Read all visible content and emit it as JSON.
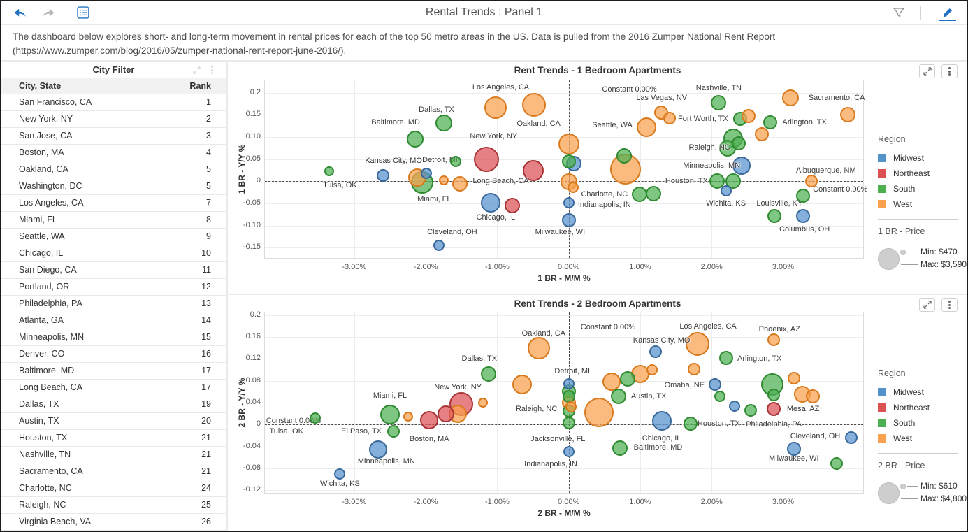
{
  "toolbar": {
    "title": "Rental Trends : Panel 1"
  },
  "description": "The dashboard below explores short- and long-term movement in rental prices for each of the top 50 metro areas in the US. Data is pulled from the 2016 Zumper National Rent Report (https://www.zumper.com/blog/2016/05/zumper-national-rent-report-june-2016/).",
  "city_filter": {
    "title": "City Filter",
    "columns": [
      "City, State",
      "Rank"
    ],
    "rows": [
      [
        "San Francisco, CA",
        "1"
      ],
      [
        "New York, NY",
        "2"
      ],
      [
        "San Jose, CA",
        "3"
      ],
      [
        "Boston, MA",
        "4"
      ],
      [
        "Oakland, CA",
        "5"
      ],
      [
        "Washington, DC",
        "5"
      ],
      [
        "Los Angeles, CA",
        "7"
      ],
      [
        "Miami, FL",
        "8"
      ],
      [
        "Seattle, WA",
        "9"
      ],
      [
        "Chicago, IL",
        "10"
      ],
      [
        "San Diego, CA",
        "11"
      ],
      [
        "Portland, OR",
        "12"
      ],
      [
        "Philadelphia, PA",
        "13"
      ],
      [
        "Atlanta, GA",
        "14"
      ],
      [
        "Minneapolis, MN",
        "15"
      ],
      [
        "Denver, CO",
        "16"
      ],
      [
        "Baltimore, MD",
        "17"
      ],
      [
        "Long Beach, CA",
        "17"
      ],
      [
        "Dallas, TX",
        "19"
      ],
      [
        "Austin, TX",
        "20"
      ],
      [
        "Houston, TX",
        "21"
      ],
      [
        "Nashville, TN",
        "21"
      ],
      [
        "Sacramento, CA",
        "21"
      ],
      [
        "Charlotte, NC",
        "24"
      ],
      [
        "Raleigh, NC",
        "25"
      ],
      [
        "Virginia Beach, VA",
        "26"
      ]
    ]
  },
  "regions": {
    "Midwest": {
      "fill": "rgba(84,146,205,0.72)",
      "stroke": "#39699B",
      "swatch": "#5492CD"
    },
    "Northeast": {
      "fill": "rgba(219,81,84,0.72)",
      "stroke": "#A93336",
      "swatch": "#DB5154"
    },
    "South": {
      "fill": "rgba(76,176,80,0.72)",
      "stroke": "#2F8A32",
      "swatch": "#4CB050"
    },
    "West": {
      "fill": "rgba(249,161,78,0.72)",
      "stroke": "#D97A1E",
      "swatch": "#F9A14E"
    }
  },
  "chart_data": [
    {
      "type": "scatter",
      "title": "Rent Trends - 1 Bedroom Apartments",
      "xlabel": "1 BR - M/M %",
      "ylabel": "1 BR - Y/Y %",
      "xlim": [
        -4.25,
        4.12
      ],
      "ylim": [
        -0.173,
        0.228
      ],
      "grid": true,
      "constant_x": 0,
      "constant_y": 0,
      "xticks": [
        {
          "v": -3,
          "label": "-3.00%"
        },
        {
          "v": -2,
          "label": "-2.00%"
        },
        {
          "v": -1,
          "label": "-1.00%"
        },
        {
          "v": 0,
          "label": "0.00%"
        },
        {
          "v": 1,
          "label": "1.00%"
        },
        {
          "v": 2,
          "label": "2.00%"
        },
        {
          "v": 3,
          "label": "3.00%"
        }
      ],
      "yticks": [
        {
          "v": 0.2,
          "label": "0.2"
        },
        {
          "v": 0.15,
          "label": "0.15"
        },
        {
          "v": 0.1,
          "label": "0.10"
        },
        {
          "v": 0.05,
          "label": "0.05"
        },
        {
          "v": 0,
          "label": "0"
        },
        {
          "v": -0.05,
          "label": "-0.05"
        },
        {
          "v": -0.1,
          "label": "-0.10"
        },
        {
          "v": -0.15,
          "label": "-0.15"
        }
      ],
      "legend": {
        "region_title": "Region",
        "entries": [
          "Midwest",
          "Northeast",
          "South",
          "West"
        ],
        "size_title": "1 BR - Price",
        "min_label": "Min: $470",
        "max_label": "Max: $3,590"
      },
      "points": [
        [
          -3.35,
          0.023,
          7,
          "South"
        ],
        [
          -2.6,
          0.013,
          9,
          "Midwest"
        ],
        [
          -2.15,
          0.095,
          12,
          "South"
        ],
        [
          -2.12,
          0.009,
          13,
          "West"
        ],
        [
          -2.05,
          -0.003,
          16,
          "South"
        ],
        [
          -1.99,
          0.018,
          8,
          "Midwest"
        ],
        [
          -1.75,
          0.002,
          7,
          "West"
        ],
        [
          -1.52,
          -0.005,
          11,
          "West"
        ],
        [
          -1.58,
          0.045,
          8,
          "South"
        ],
        [
          -1.75,
          0.131,
          12,
          "South"
        ],
        [
          -1.02,
          0.166,
          16,
          "West"
        ],
        [
          -0.49,
          0.173,
          17,
          "West"
        ],
        [
          -1.15,
          0.05,
          18,
          "Northeast"
        ],
        [
          -0.5,
          0.025,
          15,
          "Northeast"
        ],
        [
          -1.09,
          -0.048,
          14,
          "Midwest"
        ],
        [
          -0.79,
          -0.055,
          11,
          "Northeast"
        ],
        [
          -1.82,
          -0.145,
          8,
          "Midwest"
        ],
        [
          0,
          0.084,
          15,
          "West"
        ],
        [
          0,
          0.045,
          10,
          "South"
        ],
        [
          0.07,
          0.04,
          11,
          "Midwest"
        ],
        [
          0,
          -0.001,
          12,
          "West"
        ],
        [
          0.06,
          -0.013,
          8,
          "West"
        ],
        [
          0,
          -0.049,
          8,
          "Midwest"
        ],
        [
          0,
          -0.088,
          10,
          "Midwest"
        ],
        [
          0.8,
          0.028,
          22,
          "West"
        ],
        [
          0.78,
          0.057,
          11,
          "South"
        ],
        [
          1.09,
          0.122,
          14,
          "West"
        ],
        [
          1.29,
          0.156,
          10,
          "West"
        ],
        [
          1.41,
          0.143,
          9,
          "West"
        ],
        [
          2.1,
          0.177,
          11,
          "South"
        ],
        [
          2.4,
          0.141,
          10,
          "South"
        ],
        [
          2.52,
          0.147,
          10,
          "West"
        ],
        [
          2.3,
          0.097,
          14,
          "South"
        ],
        [
          2.22,
          0.075,
          12,
          "South"
        ],
        [
          2.38,
          0.086,
          10,
          "South"
        ],
        [
          2.42,
          0.036,
          13,
          "Midwest"
        ],
        [
          2.08,
          0.0,
          11,
          "South"
        ],
        [
          2.3,
          0.001,
          11,
          "South"
        ],
        [
          2.2,
          -0.022,
          8,
          "Midwest"
        ],
        [
          0.99,
          -0.029,
          11,
          "South"
        ],
        [
          1.19,
          -0.027,
          11,
          "South"
        ],
        [
          3.1,
          0.188,
          12,
          "West"
        ],
        [
          3.9,
          0.151,
          11,
          "West"
        ],
        [
          2.82,
          0.133,
          10,
          "South"
        ],
        [
          2.7,
          0.106,
          10,
          "West"
        ],
        [
          3.4,
          0.0,
          9,
          "West"
        ],
        [
          3.28,
          -0.033,
          10,
          "South"
        ],
        [
          3.28,
          -0.078,
          10,
          "Midwest"
        ],
        [
          2.88,
          -0.079,
          10,
          "South"
        ]
      ],
      "labels": [
        [
          "Los Angeles, CA",
          -0.95,
          0.212
        ],
        [
          "Constant 0.00%",
          0.85,
          0.208
        ],
        [
          "Las Vegas, NV",
          1.3,
          0.189
        ],
        [
          "Nashville, TN",
          2.1,
          0.211
        ],
        [
          "Sacramento, CA",
          3.75,
          0.189
        ],
        [
          "Dallas, TX",
          -1.85,
          0.162
        ],
        [
          "Oakland, CA",
          -0.42,
          0.13
        ],
        [
          "Baltimore, MD",
          -2.42,
          0.134
        ],
        [
          "Seattle, WA",
          0.61,
          0.127
        ],
        [
          "Fort Worth, TX",
          1.88,
          0.141
        ],
        [
          "Arlington, TX",
          3.3,
          0.133
        ],
        [
          "New York, NY",
          -1.05,
          0.102
        ],
        [
          "Raleigh, NC",
          1.97,
          0.077
        ],
        [
          "Kansas City, MO",
          -2.45,
          0.047
        ],
        [
          "Detroit, MI",
          -1.8,
          0.048
        ],
        [
          "Minneapolis, MN",
          2.0,
          0.036
        ],
        [
          "Albuquerque, NM",
          3.6,
          0.024
        ],
        [
          "Tulsa, OK",
          -3.2,
          -0.009
        ],
        [
          "Long Beach, CA",
          -0.95,
          0.0
        ],
        [
          "Houston, TX",
          1.65,
          0.0
        ],
        [
          "Constant 0.00%",
          3.8,
          -0.019
        ],
        [
          "Charlotte, NC",
          0.5,
          -0.029
        ],
        [
          "Indianapolis, IN",
          0.5,
          -0.053
        ],
        [
          "Wichita, KS",
          2.2,
          -0.05
        ],
        [
          "Louisville, KY",
          2.95,
          -0.05
        ],
        [
          "Miami, FL",
          -1.88,
          -0.041
        ],
        [
          "Chicago, IL",
          -1.02,
          -0.082
        ],
        [
          "Cleveland, OH",
          -1.63,
          -0.115
        ],
        [
          "Milwaukee, WI",
          -0.12,
          -0.115
        ],
        [
          "Columbus, OH",
          3.3,
          -0.108
        ]
      ]
    },
    {
      "type": "scatter",
      "title": "Rent Trends - 2 Bedroom Apartments",
      "xlabel": "2 BR - M/M %",
      "ylabel": "2 BR - Y/Y %",
      "xlim": [
        -4.25,
        4.12
      ],
      "ylim": [
        -0.125,
        0.205
      ],
      "grid": true,
      "constant_x": 0,
      "constant_y": 0,
      "xticks": [
        {
          "v": -3,
          "label": "-3.00%"
        },
        {
          "v": -2,
          "label": "-2.00%"
        },
        {
          "v": -1,
          "label": "-1.00%"
        },
        {
          "v": 0,
          "label": "0.00%"
        },
        {
          "v": 1,
          "label": "1.00%"
        },
        {
          "v": 2,
          "label": "2.00%"
        },
        {
          "v": 3,
          "label": "3.00%"
        }
      ],
      "yticks": [
        {
          "v": 0.2,
          "label": "0.2"
        },
        {
          "v": 0.16,
          "label": "0.16"
        },
        {
          "v": 0.12,
          "label": "0.12"
        },
        {
          "v": 0.08,
          "label": "0.08"
        },
        {
          "v": 0.04,
          "label": "0.04"
        },
        {
          "v": 0,
          "label": "0"
        },
        {
          "v": -0.04,
          "label": "-0.04"
        },
        {
          "v": -0.08,
          "label": "-0.08"
        },
        {
          "v": -0.12,
          "label": "-0.12"
        }
      ],
      "legend": {
        "region_title": "Region",
        "entries": [
          "Midwest",
          "Northeast",
          "South",
          "West"
        ],
        "size_title": "2 BR - Price",
        "min_label": "Min: $610",
        "max_label": "Max: $4,800"
      },
      "points": [
        [
          -3.55,
          0.012,
          8,
          "South"
        ],
        [
          -2.5,
          0.018,
          14,
          "South"
        ],
        [
          -2.25,
          0.015,
          7,
          "West"
        ],
        [
          -2.45,
          -0.012,
          9,
          "South"
        ],
        [
          -2.67,
          -0.046,
          13,
          "Midwest"
        ],
        [
          -3.2,
          -0.09,
          8,
          "Midwest"
        ],
        [
          -1.95,
          0.008,
          13,
          "Northeast"
        ],
        [
          -1.72,
          0.02,
          12,
          "Northeast"
        ],
        [
          -1.5,
          0.038,
          17,
          "Northeast"
        ],
        [
          -1.55,
          0.02,
          13,
          "West"
        ],
        [
          -1.2,
          0.04,
          7,
          "West"
        ],
        [
          -1.12,
          0.093,
          11,
          "South"
        ],
        [
          -0.65,
          0.073,
          14,
          "West"
        ],
        [
          -0.42,
          0.14,
          16,
          "West"
        ],
        [
          0,
          0.074,
          8,
          "Midwest"
        ],
        [
          0,
          0.061,
          10,
          "South"
        ],
        [
          0,
          0.052,
          9,
          "South"
        ],
        [
          0,
          0.04,
          10,
          "West"
        ],
        [
          0.03,
          0.032,
          8,
          "West"
        ],
        [
          0,
          0.025,
          9,
          "South"
        ],
        [
          0,
          0.003,
          9,
          "South"
        ],
        [
          0,
          -0.05,
          8,
          "Midwest"
        ],
        [
          0.42,
          0.022,
          21,
          "West"
        ],
        [
          0.7,
          0.052,
          11,
          "South"
        ],
        [
          0.6,
          0.078,
          13,
          "West"
        ],
        [
          0.82,
          0.083,
          11,
          "South"
        ],
        [
          1.0,
          0.093,
          13,
          "West"
        ],
        [
          1.17,
          0.1,
          8,
          "West"
        ],
        [
          1.22,
          0.133,
          9,
          "Midwest"
        ],
        [
          1.8,
          0.148,
          17,
          "West"
        ],
        [
          2.87,
          0.155,
          9,
          "West"
        ],
        [
          2.2,
          0.122,
          10,
          "South"
        ],
        [
          1.75,
          0.102,
          9,
          "West"
        ],
        [
          2.05,
          0.073,
          9,
          "Midwest"
        ],
        [
          2.12,
          0.051,
          8,
          "South"
        ],
        [
          2.32,
          0.033,
          8,
          "Midwest"
        ],
        [
          2.55,
          0.026,
          9,
          "South"
        ],
        [
          2.87,
          0.028,
          10,
          "Northeast"
        ],
        [
          2.85,
          0.073,
          16,
          "South"
        ],
        [
          2.87,
          0.054,
          9,
          "South"
        ],
        [
          3.15,
          0.085,
          9,
          "West"
        ],
        [
          3.27,
          0.055,
          12,
          "West"
        ],
        [
          3.42,
          0.052,
          10,
          "West"
        ],
        [
          1.3,
          0.007,
          14,
          "Midwest"
        ],
        [
          1.7,
          0.002,
          10,
          "South"
        ],
        [
          0.72,
          -0.043,
          11,
          "South"
        ],
        [
          3.95,
          -0.024,
          9,
          "Midwest"
        ],
        [
          3.15,
          -0.044,
          10,
          "Midwest"
        ],
        [
          3.75,
          -0.071,
          9,
          "South"
        ]
      ],
      "labels": [
        [
          "Constant 0.00%",
          0.55,
          0.178
        ],
        [
          "Oakland, CA",
          -0.35,
          0.167
        ],
        [
          "Los Angeles, CA",
          1.95,
          0.18
        ],
        [
          "Phoenix, AZ",
          2.95,
          0.174
        ],
        [
          "Kansas City, MO",
          1.3,
          0.154
        ],
        [
          "Dallas, TX",
          -1.25,
          0.12
        ],
        [
          "Detroit, MI",
          0.05,
          0.098
        ],
        [
          "Arlington, TX",
          2.67,
          0.12
        ],
        [
          "New York, NY",
          -1.55,
          0.068
        ],
        [
          "Miami, FL",
          -2.5,
          0.053
        ],
        [
          "Omaha, NE",
          1.62,
          0.072
        ],
        [
          "Austin, TX",
          1.12,
          0.052
        ],
        [
          "Raleigh, NC",
          -0.45,
          0.028
        ],
        [
          "Mesa, AZ",
          3.28,
          0.028
        ],
        [
          "Constant 0.00%",
          -3.85,
          0.007
        ],
        [
          "Tulsa, OK",
          -3.95,
          -0.013
        ],
        [
          "El Paso, TX",
          -2.9,
          -0.012
        ],
        [
          "Boston, MA",
          -1.95,
          -0.026
        ],
        [
          "Minneapolis, MN",
          -2.55,
          -0.068
        ],
        [
          "Wichita, KS",
          -3.2,
          -0.108
        ],
        [
          "Jacksonville, FL",
          -0.15,
          -0.026
        ],
        [
          "Indianapolis, IN",
          -0.25,
          -0.072
        ],
        [
          "Chicago, IL",
          1.3,
          -0.025
        ],
        [
          "Houston, TX",
          2.1,
          0.001
        ],
        [
          "Philadelphia, PA",
          2.87,
          0.0
        ],
        [
          "Baltimore, MD",
          1.25,
          -0.042
        ],
        [
          "Cleveland, OH",
          3.45,
          -0.022
        ],
        [
          "Milwaukee, WI",
          3.15,
          -0.062
        ]
      ]
    }
  ]
}
